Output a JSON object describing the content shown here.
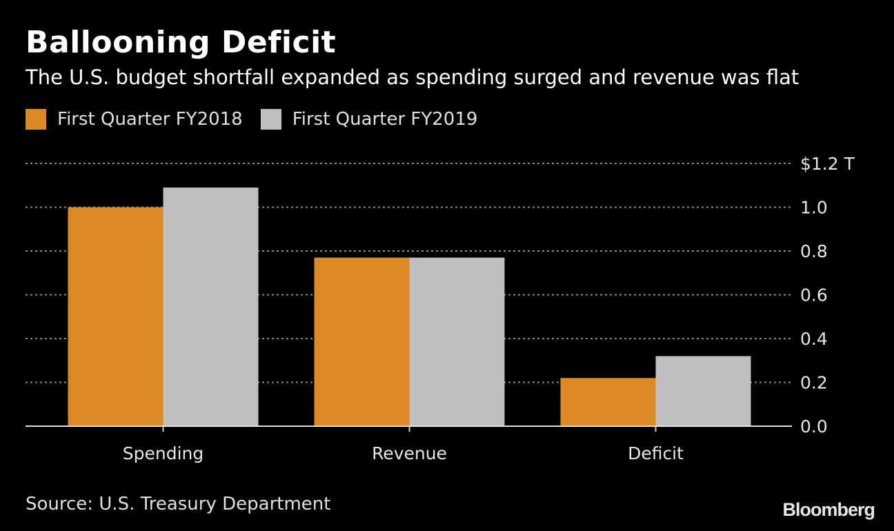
{
  "chart_data": {
    "type": "bar",
    "title": "Ballooning Deficit",
    "subtitle": "The U.S. budget shortfall expanded as spending surged and revenue was flat",
    "categories": [
      "Spending",
      "Revenue",
      "Deficit"
    ],
    "series": [
      {
        "name": "First Quarter FY2018",
        "color": "#dc8a24",
        "values": [
          1.0,
          0.77,
          0.22
        ]
      },
      {
        "name": "First Quarter FY2019",
        "color": "#bfbfbf",
        "values": [
          1.09,
          0.77,
          0.32
        ]
      }
    ],
    "yticks": [
      {
        "value": 0.0,
        "label": "0.0"
      },
      {
        "value": 0.2,
        "label": "0.2"
      },
      {
        "value": 0.4,
        "label": "0.4"
      },
      {
        "value": 0.6,
        "label": "0.6"
      },
      {
        "value": 0.8,
        "label": "0.8"
      },
      {
        "value": 1.0,
        "label": "1.0"
      },
      {
        "value": 1.2,
        "label": "$1.2 T"
      }
    ],
    "ylim": [
      0,
      1.2
    ],
    "yaxis_position": "right",
    "grid": true,
    "legend_position": "top-left",
    "source": "Source: U.S. Treasury Department",
    "logo": "Bloomberg"
  }
}
